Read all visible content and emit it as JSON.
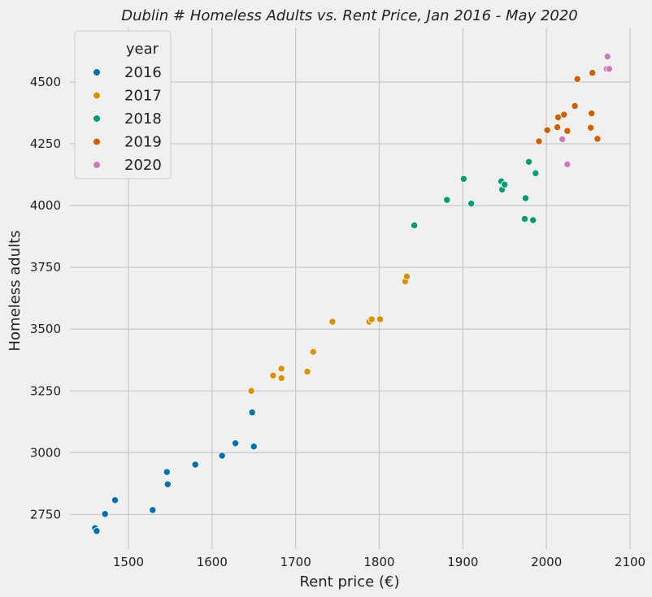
{
  "chart_data": {
    "type": "scatter",
    "title": "Dublin # Homeless Adults vs. Rent Price, Jan 2016 - May 2020",
    "xlabel": "Rent price (€)",
    "ylabel": "Homeless adults",
    "xlim": [
      1430,
      2100
    ],
    "ylim": [
      2610,
      4720
    ],
    "x_ticks": [
      1500,
      1600,
      1700,
      1800,
      1900,
      2000,
      2100
    ],
    "y_ticks": [
      2750,
      3000,
      3250,
      3500,
      3750,
      4000,
      4250,
      4500
    ],
    "x_tick_labels": [
      "1500",
      "1600",
      "1700",
      "1800",
      "1900",
      "2000",
      "2100"
    ],
    "y_tick_labels": [
      "2750",
      "3000",
      "3250",
      "3500",
      "3750",
      "4000",
      "4250",
      "4500"
    ],
    "grid": true,
    "legend": {
      "title": "year",
      "placement": "top-left"
    },
    "series": [
      {
        "name": "2016",
        "color": "#0173b2",
        "points": [
          [
            1460,
            2695
          ],
          [
            1462,
            2683
          ],
          [
            1472,
            2752
          ],
          [
            1484,
            2808
          ],
          [
            1529,
            2768
          ],
          [
            1546,
            2922
          ],
          [
            1547,
            2872
          ],
          [
            1580,
            2952
          ],
          [
            1612,
            2988
          ],
          [
            1628,
            3038
          ],
          [
            1648,
            3163
          ],
          [
            1650,
            3025
          ]
        ]
      },
      {
        "name": "2017",
        "color": "#de8f05",
        "points": [
          [
            1647,
            3250
          ],
          [
            1673,
            3312
          ],
          [
            1683,
            3340
          ],
          [
            1683,
            3302
          ],
          [
            1714,
            3328
          ],
          [
            1721,
            3408
          ],
          [
            1744,
            3530
          ],
          [
            1788,
            3530
          ],
          [
            1791,
            3540
          ],
          [
            1801,
            3540
          ],
          [
            1831,
            3693
          ],
          [
            1833,
            3713
          ]
        ]
      },
      {
        "name": "2018",
        "color": "#029e73",
        "points": [
          [
            1842,
            3920
          ],
          [
            1881,
            4023
          ],
          [
            1901,
            4108
          ],
          [
            1910,
            4008
          ],
          [
            1946,
            4098
          ],
          [
            1947,
            4065
          ],
          [
            1950,
            4085
          ],
          [
            1974,
            3946
          ],
          [
            1975,
            4030
          ],
          [
            1979,
            4177
          ],
          [
            1984,
            3941
          ],
          [
            1987,
            4131
          ]
        ]
      },
      {
        "name": "2019",
        "color": "#d55e00",
        "points": [
          [
            1991,
            4260
          ],
          [
            2001,
            4305
          ],
          [
            2013,
            4317
          ],
          [
            2014,
            4357
          ],
          [
            2021,
            4368
          ],
          [
            2025,
            4302
          ],
          [
            2034,
            4403
          ],
          [
            2037,
            4512
          ],
          [
            2053,
            4315
          ],
          [
            2054,
            4373
          ],
          [
            2055,
            4537
          ],
          [
            2061,
            4270
          ]
        ]
      },
      {
        "name": "2020",
        "color": "#cc78bc",
        "points": [
          [
            2019,
            4268
          ],
          [
            2025,
            4167
          ],
          [
            2072,
            4553
          ],
          [
            2073,
            4603
          ],
          [
            2075,
            4553
          ]
        ]
      }
    ]
  }
}
